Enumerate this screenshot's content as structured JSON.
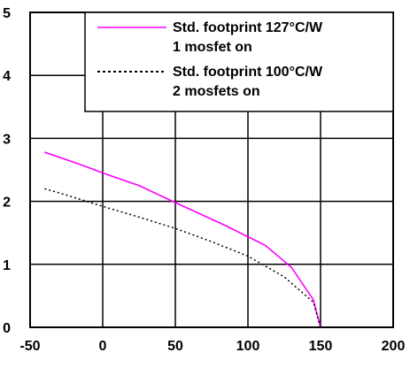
{
  "chart_data": {
    "type": "line",
    "title": "",
    "xlabel": "",
    "ylabel": "",
    "xlim": [
      -50,
      200
    ],
    "ylim": [
      0,
      5
    ],
    "x_ticks": [
      -50,
      0,
      50,
      100,
      150,
      200
    ],
    "y_ticks": [
      0,
      1,
      2,
      3,
      4,
      5
    ],
    "grid": true,
    "legend_position": "top-right",
    "series": [
      {
        "name": "Std. footprint 127°C/W 1 mosfet on",
        "legend_lines": [
          "Std. footprint 127°C/W",
          "1 mosfet on"
        ],
        "color": "#ff00ff",
        "style": "solid",
        "x": [
          -40,
          -15,
          0,
          25,
          50,
          85,
          112,
          130,
          145,
          150
        ],
        "y": [
          2.78,
          2.58,
          2.45,
          2.25,
          1.98,
          1.61,
          1.3,
          0.95,
          0.44,
          0.0
        ]
      },
      {
        "name": "Std. footprint 100°C/W 2 mosfets on",
        "legend_lines": [
          "Std. footprint 100°C/W",
          "2 mosfets on"
        ],
        "color": "#000000",
        "style": "dotted",
        "x": [
          -40,
          -25,
          0,
          25,
          50,
          75,
          100,
          125,
          145,
          150
        ],
        "y": [
          2.2,
          2.1,
          1.92,
          1.75,
          1.57,
          1.36,
          1.13,
          0.8,
          0.4,
          0.0
        ]
      }
    ]
  }
}
